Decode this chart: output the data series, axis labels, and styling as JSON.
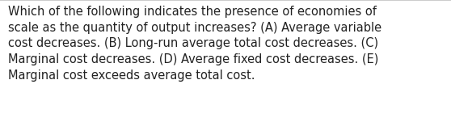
{
  "lines": [
    "Which of the following indicates the presence of economies of",
    "scale as the quantity of output increases? (A) Average variable",
    "cost decreases. (B) Long-run average total cost decreases. (C)",
    "Marginal cost decreases. (D) Average fixed cost decreases. (E)",
    "Marginal cost exceeds average total cost."
  ],
  "background_color": "#ffffff",
  "text_color": "#222222",
  "font_size": 10.5,
  "border_top_color": "#cccccc",
  "fig_width": 5.58,
  "fig_height": 1.46,
  "dpi": 100
}
